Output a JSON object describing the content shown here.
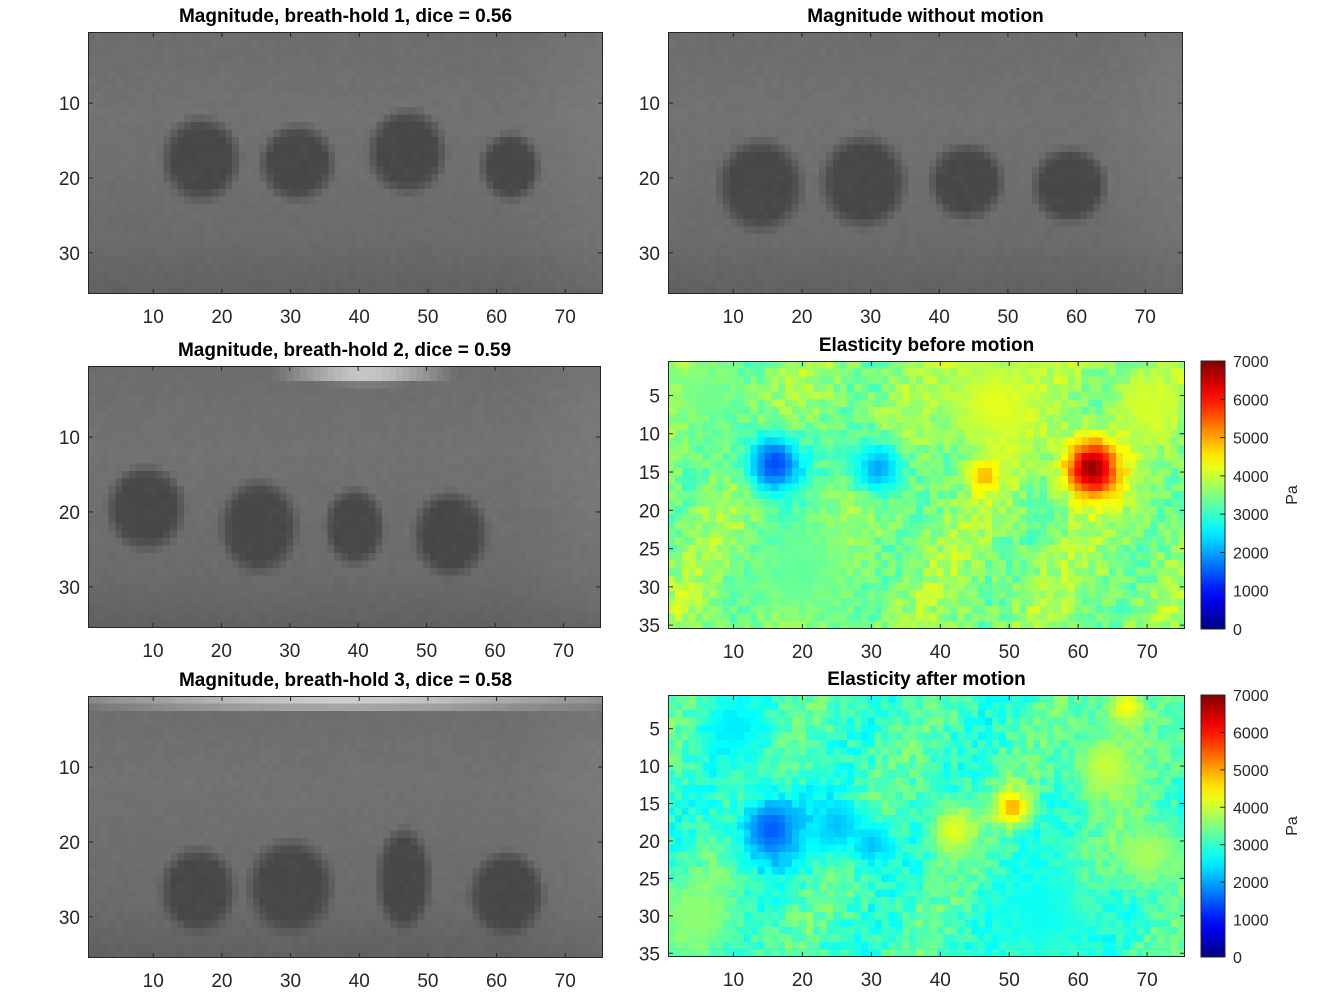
{
  "colors": {
    "axes_edge": "#262626",
    "gray_background": "#6a6a6a",
    "gray_inclusion": "#474747",
    "gray_artifact": "#f2f2f2",
    "jet_colormap": [
      "#00008f",
      "#0000ff",
      "#007fff",
      "#00ffff",
      "#7fff7f",
      "#ffff00",
      "#ff7f00",
      "#ff0000",
      "#7f0000"
    ]
  },
  "chart_data": [
    {
      "id": "mag1",
      "type": "heatmap",
      "colormap": "gray",
      "title": "Magnitude, breath-hold 1, dice = 0.56",
      "xlabel": "",
      "ylabel": "",
      "xlim": [
        0.5,
        75.5
      ],
      "ylim": [
        0.5,
        35.5
      ],
      "y_direction": "reverse",
      "xticks": [
        10,
        20,
        30,
        40,
        50,
        60,
        70
      ],
      "yticks": [
        10,
        20,
        30
      ],
      "inclusions": [
        {
          "x": 17,
          "y": 17.5,
          "rx": 5,
          "ry": 5
        },
        {
          "x": 31,
          "y": 18,
          "rx": 4.8,
          "ry": 4.5
        },
        {
          "x": 47,
          "y": 16.5,
          "rx": 5,
          "ry": 5
        },
        {
          "x": 62,
          "y": 18.5,
          "rx": 3.8,
          "ry": 4
        }
      ],
      "artifacts": []
    },
    {
      "id": "mag0",
      "type": "heatmap",
      "colormap": "gray",
      "title": "Magnitude without motion",
      "xlabel": "",
      "ylabel": "",
      "xlim": [
        0.5,
        75.5
      ],
      "ylim": [
        0.5,
        35.5
      ],
      "y_direction": "reverse",
      "xticks": [
        10,
        20,
        30,
        40,
        50,
        60,
        70
      ],
      "yticks": [
        10,
        20,
        30
      ],
      "inclusions": [
        {
          "x": 14,
          "y": 21,
          "rx": 5.5,
          "ry": 5.5
        },
        {
          "x": 29,
          "y": 20.5,
          "rx": 5.5,
          "ry": 5.5
        },
        {
          "x": 44,
          "y": 20.5,
          "rx": 4.8,
          "ry": 4.5
        },
        {
          "x": 59,
          "y": 21,
          "rx": 4.8,
          "ry": 4.5
        }
      ],
      "artifacts": []
    },
    {
      "id": "mag2",
      "type": "heatmap",
      "colormap": "gray",
      "title": "Magnitude, breath-hold 2, dice = 0.59",
      "xlabel": "",
      "ylabel": "",
      "xlim": [
        0.5,
        75.5
      ],
      "ylim": [
        0.5,
        35.5
      ],
      "y_direction": "reverse",
      "xticks": [
        10,
        20,
        30,
        40,
        50,
        60,
        70
      ],
      "yticks": [
        10,
        20,
        30
      ],
      "inclusions": [
        {
          "x": 9,
          "y": 19.5,
          "rx": 5,
          "ry": 5
        },
        {
          "x": 25.5,
          "y": 22,
          "rx": 5,
          "ry": 5.5
        },
        {
          "x": 39.5,
          "y": 22,
          "rx": 3.8,
          "ry": 4.5
        },
        {
          "x": 53.5,
          "y": 23,
          "rx": 4.8,
          "ry": 5
        }
      ],
      "artifacts": [
        {
          "x": 41,
          "y": 1.5,
          "rx": 10,
          "ry": 1.2
        }
      ]
    },
    {
      "id": "el_before",
      "type": "heatmap",
      "colormap": "jet",
      "title": "Elasticity before motion",
      "xlabel": "",
      "ylabel": "",
      "xlim": [
        0.5,
        75.5
      ],
      "ylim": [
        0.5,
        35.5
      ],
      "y_direction": "reverse",
      "xticks": [
        10,
        20,
        30,
        40,
        50,
        60,
        70
      ],
      "yticks": [
        5,
        10,
        15,
        20,
        25,
        30,
        35
      ],
      "clim": [
        0,
        7000
      ],
      "colorbar": {
        "label": "Pa",
        "ticks": [
          0,
          1000,
          2000,
          3000,
          4000,
          5000,
          6000,
          7000
        ]
      },
      "background_pa": 3600,
      "blobs": [
        {
          "x": 16,
          "y": 14,
          "r": 4.5,
          "value": 1300
        },
        {
          "x": 31,
          "y": 14.5,
          "r": 4,
          "value": 2000
        },
        {
          "x": 46.5,
          "y": 15.5,
          "r": 2.2,
          "value": 5000
        },
        {
          "x": 62,
          "y": 14.5,
          "r": 4,
          "value": 6900
        },
        {
          "x": 48,
          "y": 6,
          "r": 7,
          "value": 4200
        },
        {
          "x": 70,
          "y": 6,
          "r": 5,
          "value": 4100
        },
        {
          "x": 20,
          "y": 28,
          "r": 8,
          "value": 3300
        },
        {
          "x": 6,
          "y": 5,
          "r": 5,
          "value": 3400
        }
      ]
    },
    {
      "id": "mag3",
      "type": "heatmap",
      "colormap": "gray",
      "title": "Magnitude, breath-hold 3, dice = 0.58",
      "xlabel": "",
      "ylabel": "",
      "xlim": [
        0.5,
        75.5
      ],
      "ylim": [
        0.5,
        35.5
      ],
      "y_direction": "reverse",
      "xticks": [
        10,
        20,
        30,
        40,
        50,
        60,
        70
      ],
      "yticks": [
        10,
        20,
        30
      ],
      "inclusions": [
        {
          "x": 16.5,
          "y": 26.5,
          "rx": 4.8,
          "ry": 5
        },
        {
          "x": 30,
          "y": 26,
          "rx": 5.5,
          "ry": 5.5
        },
        {
          "x": 46.5,
          "y": 25,
          "rx": 3.5,
          "ry": 6
        },
        {
          "x": 61.5,
          "y": 27,
          "rx": 4.8,
          "ry": 5
        }
      ],
      "artifacts": [
        {
          "x": 38,
          "y": 1.3,
          "rx": 36,
          "ry": 0.9
        }
      ]
    },
    {
      "id": "el_after",
      "type": "heatmap",
      "colormap": "jet",
      "title": "Elasticity after motion",
      "xlabel": "",
      "ylabel": "",
      "xlim": [
        0.5,
        75.5
      ],
      "ylim": [
        0.5,
        35.5
      ],
      "y_direction": "reverse",
      "xticks": [
        10,
        20,
        30,
        40,
        50,
        60,
        70
      ],
      "yticks": [
        5,
        10,
        15,
        20,
        25,
        30,
        35
      ],
      "clim": [
        0,
        7000
      ],
      "colorbar": {
        "label": "Pa",
        "ticks": [
          0,
          1000,
          2000,
          3000,
          4000,
          5000,
          6000,
          7000
        ]
      },
      "background_pa": 3100,
      "blobs": [
        {
          "x": 15.5,
          "y": 18.5,
          "r": 5,
          "value": 1500
        },
        {
          "x": 25,
          "y": 18,
          "r": 4,
          "value": 2200
        },
        {
          "x": 30,
          "y": 20.5,
          "r": 3,
          "value": 2200
        },
        {
          "x": 50.5,
          "y": 15.5,
          "r": 2.5,
          "value": 5000
        },
        {
          "x": 42,
          "y": 18.5,
          "r": 3.5,
          "value": 4200
        },
        {
          "x": 67,
          "y": 2,
          "r": 3,
          "value": 4400
        },
        {
          "x": 64,
          "y": 10,
          "r": 5,
          "value": 4000
        },
        {
          "x": 70,
          "y": 22,
          "r": 5,
          "value": 3800
        },
        {
          "x": 10,
          "y": 5,
          "r": 5,
          "value": 2500
        },
        {
          "x": 5,
          "y": 30,
          "r": 6,
          "value": 3600
        },
        {
          "x": 55,
          "y": 30,
          "r": 8,
          "value": 2700
        }
      ]
    }
  ]
}
